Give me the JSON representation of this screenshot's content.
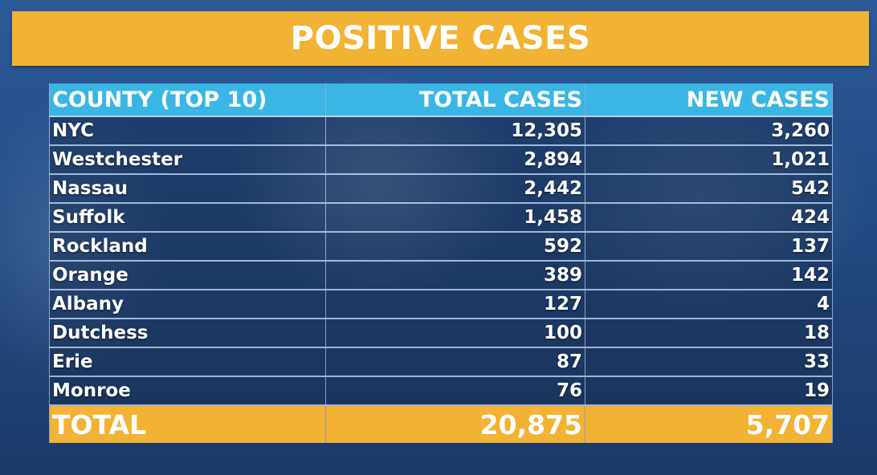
{
  "header": {
    "title": "POSITIVE CASES"
  },
  "colors": {
    "title_bar": "#f2b233",
    "header_row": "#39b6e3",
    "total_row": "#f2b233",
    "text": "#ffffff"
  },
  "chart_data": {
    "type": "table",
    "title": "POSITIVE CASES",
    "columns": [
      "COUNTY (TOP 10)",
      "TOTAL CASES",
      "NEW CASES"
    ],
    "rows": [
      {
        "county": "NYC",
        "total": "12,305",
        "new": "3,260"
      },
      {
        "county": "Westchester",
        "total": "2,894",
        "new": "1,021"
      },
      {
        "county": "Nassau",
        "total": "2,442",
        "new": "542"
      },
      {
        "county": "Suffolk",
        "total": "1,458",
        "new": "424"
      },
      {
        "county": "Rockland",
        "total": "592",
        "new": "137"
      },
      {
        "county": "Orange",
        "total": "389",
        "new": "142"
      },
      {
        "county": "Albany",
        "total": "127",
        "new": "4"
      },
      {
        "county": "Dutchess",
        "total": "100",
        "new": "18"
      },
      {
        "county": "Erie",
        "total": "87",
        "new": "33"
      },
      {
        "county": "Monroe",
        "total": "76",
        "new": "19"
      }
    ],
    "total_row": {
      "label": "TOTAL",
      "total": "20,875",
      "new": "5,707"
    }
  }
}
